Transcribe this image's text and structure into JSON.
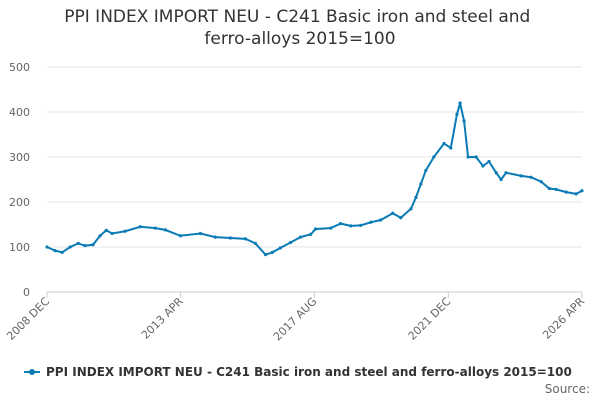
{
  "chart_data": {
    "type": "line",
    "title": "PPI INDEX IMPORT NEU - C241 Basic iron and steel and ferro-alloys 2015=100",
    "source": "Source:",
    "x": [
      2008.92,
      2009.18,
      2009.41,
      2009.67,
      2009.93,
      2010.15,
      2010.41,
      2010.64,
      2010.84,
      2011.03,
      2011.45,
      2011.94,
      2012.43,
      2012.75,
      2013.24,
      2013.89,
      2014.37,
      2014.86,
      2015.35,
      2015.67,
      2016.0,
      2016.22,
      2016.48,
      2016.81,
      2017.13,
      2017.46,
      2017.62,
      2018.11,
      2018.43,
      2018.76,
      2019.08,
      2019.41,
      2019.73,
      2020.12,
      2020.38,
      2020.71,
      2020.87,
      2021.03,
      2021.19,
      2021.45,
      2021.78,
      2022.0,
      2022.2,
      2022.3,
      2022.43,
      2022.56,
      2022.82,
      2023.04,
      2023.24,
      2023.47,
      2023.63,
      2023.79,
      2024.28,
      2024.6,
      2024.93,
      2025.19,
      2025.41,
      2025.74,
      2026.06,
      2026.25
    ],
    "series": [
      {
        "name": "PPI INDEX IMPORT NEU - C241 Basic iron and steel and ferro-alloys 2015=100",
        "color": "#0a7bb5",
        "values": [
          100,
          92,
          88,
          100,
          108,
          103,
          105,
          125,
          137,
          130,
          135,
          145,
          142,
          138,
          125,
          130,
          122,
          120,
          118,
          108,
          83,
          88,
          98,
          110,
          122,
          128,
          140,
          142,
          152,
          147,
          148,
          155,
          160,
          175,
          165,
          185,
          210,
          240,
          270,
          300,
          330,
          320,
          395,
          420,
          380,
          300,
          300,
          280,
          290,
          265,
          250,
          265,
          258,
          255,
          245,
          230,
          228,
          222,
          218,
          225
        ]
      }
    ],
    "xlim": [
      2008.92,
      2026.25
    ],
    "xticks": [
      {
        "value": 2008.92,
        "label": "2008 DEC"
      },
      {
        "value": 2013.25,
        "label": "2013 APR"
      },
      {
        "value": 2017.58,
        "label": "2017 AUG"
      },
      {
        "value": 2021.92,
        "label": "2021 DEC"
      },
      {
        "value": 2026.25,
        "label": "2026 APR"
      }
    ],
    "ylim": [
      0,
      500
    ],
    "yticks": [
      0,
      100,
      200,
      300,
      400,
      500
    ],
    "grid": true
  }
}
